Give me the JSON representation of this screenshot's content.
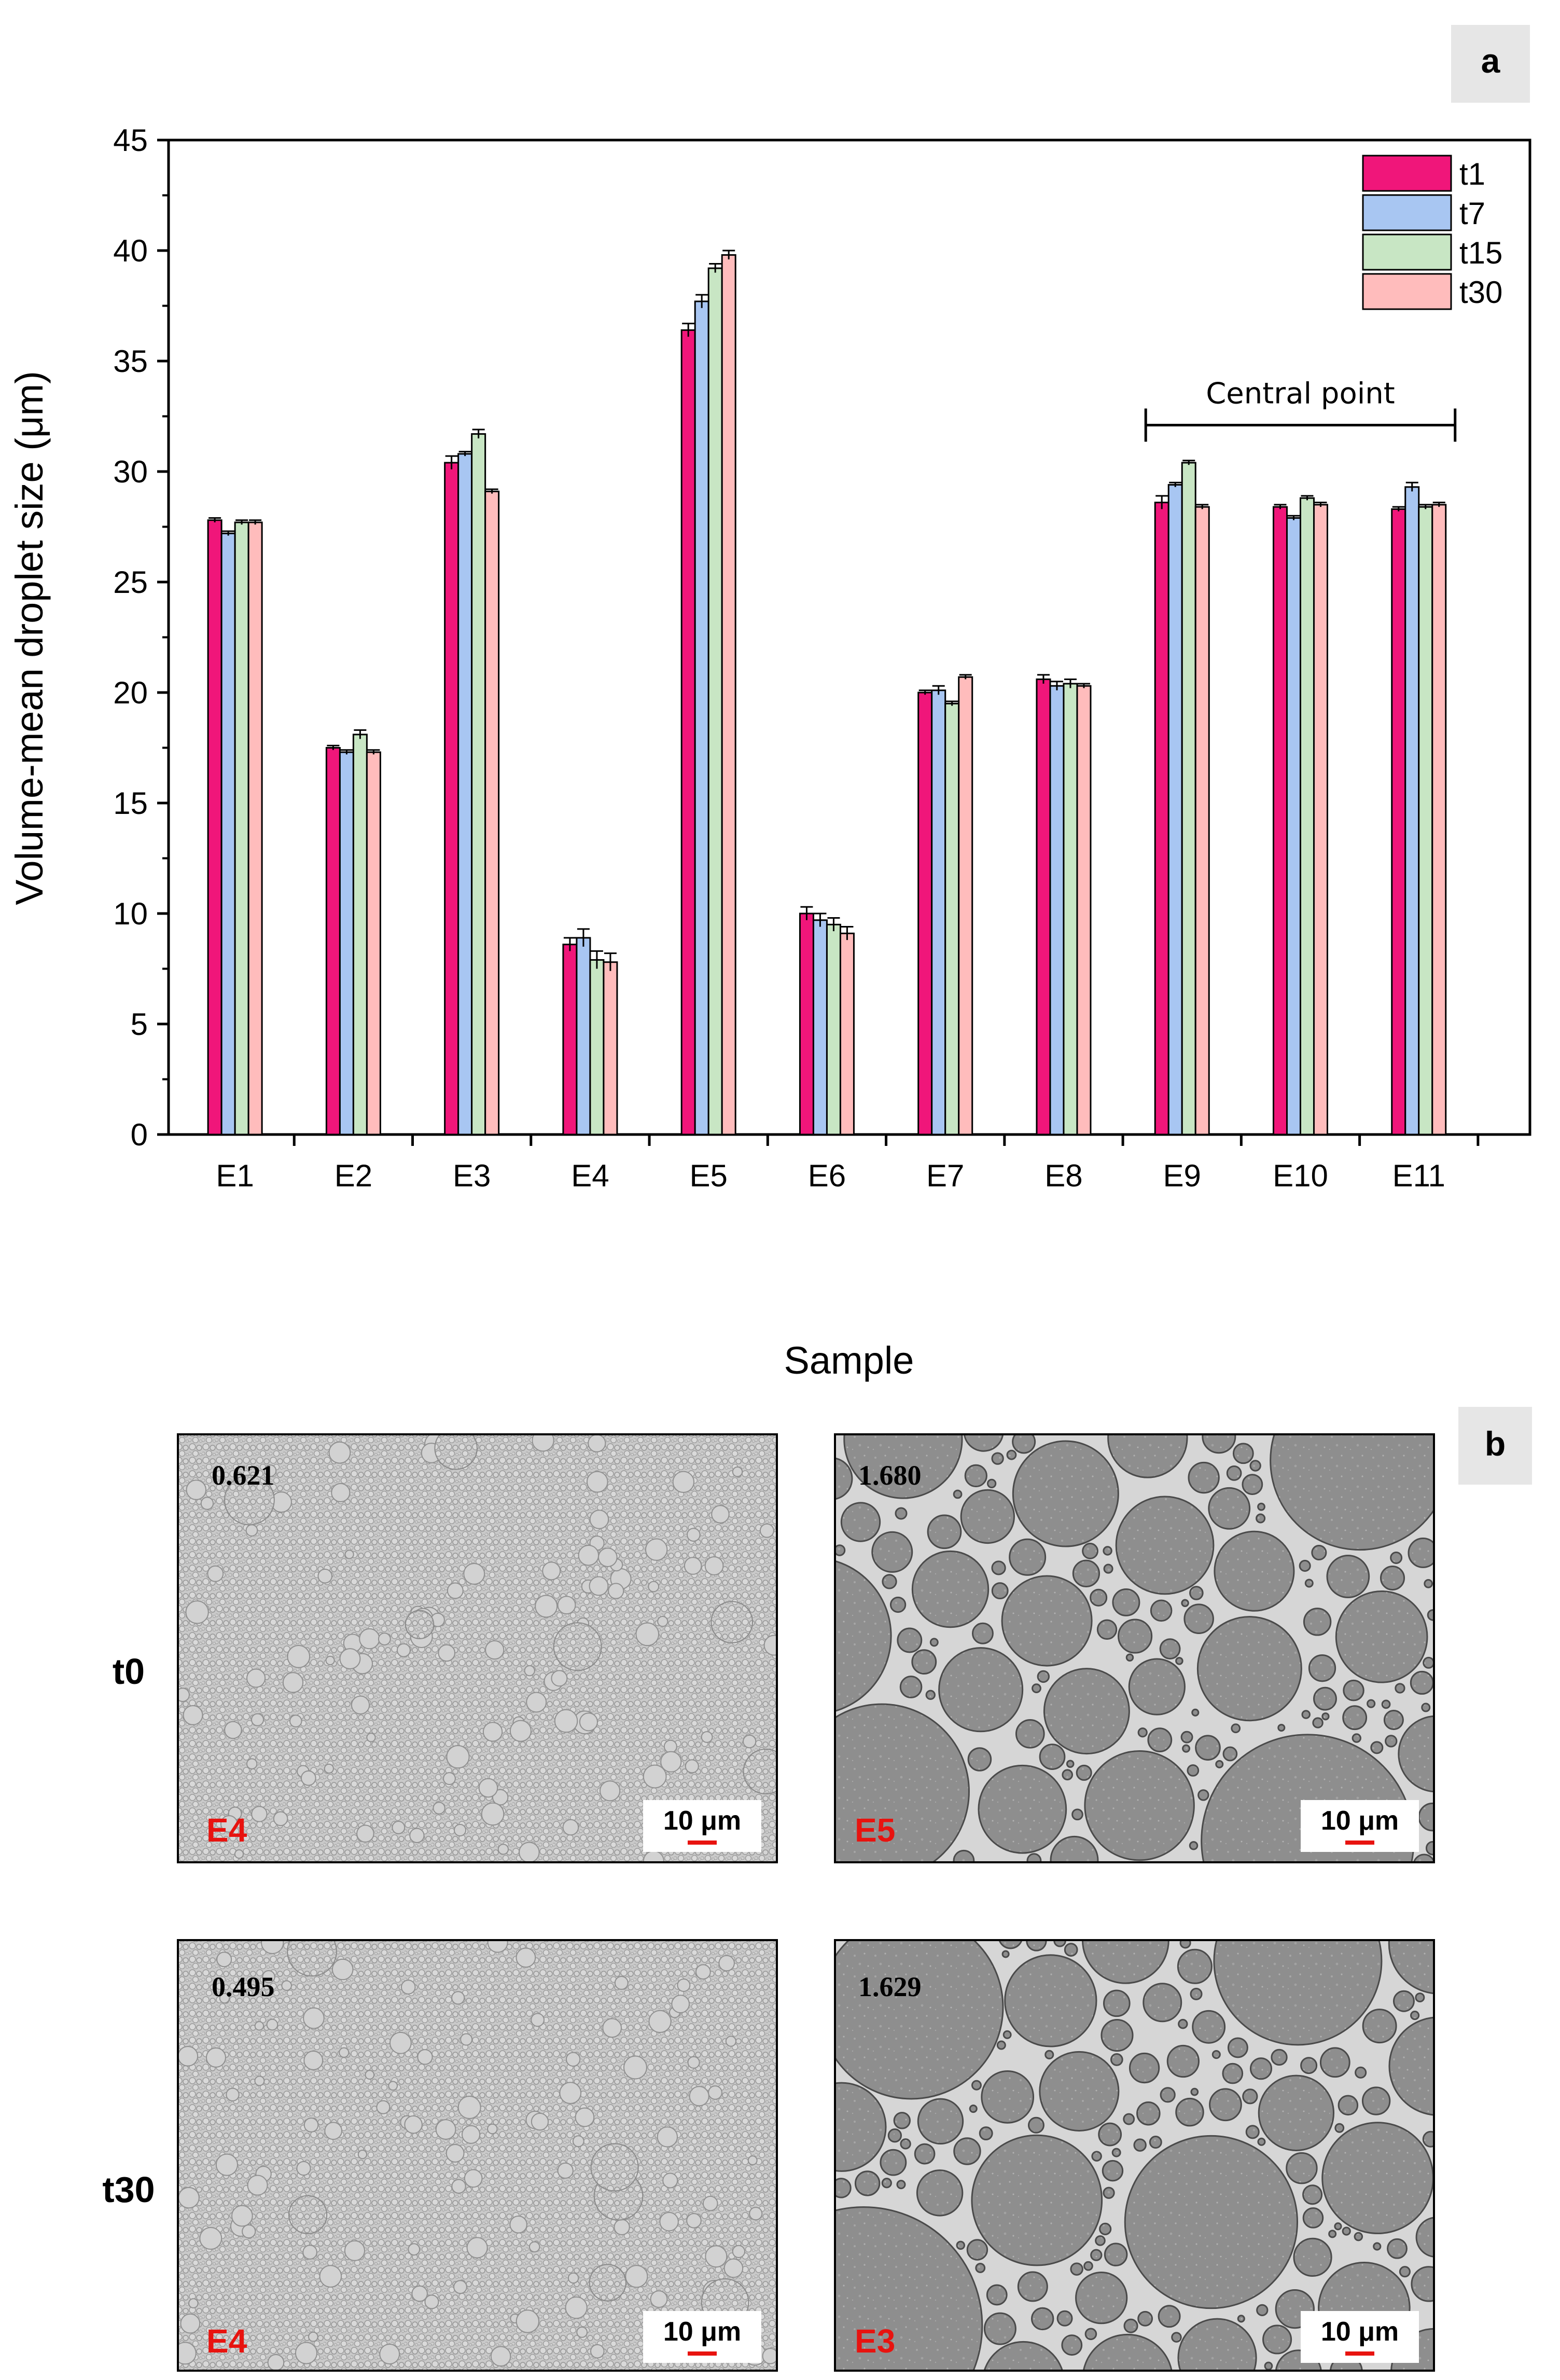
{
  "panel_a_label": "a",
  "panel_b_label": "b",
  "chart_data": {
    "type": "bar",
    "title": "",
    "xlabel": "Sample",
    "ylabel": "Volume-mean droplet size (μm)",
    "ylim": [
      0,
      45
    ],
    "yticks": [
      0,
      5,
      10,
      15,
      20,
      25,
      30,
      35,
      40,
      45
    ],
    "categories": [
      "E1",
      "E2",
      "E3",
      "E4",
      "E5",
      "E6",
      "E7",
      "E8",
      "E9",
      "E10",
      "E11"
    ],
    "series": [
      {
        "name": "t1",
        "color": "#f0167a",
        "values": [
          27.8,
          17.5,
          30.4,
          8.6,
          36.4,
          10.0,
          20.0,
          20.6,
          28.6,
          28.4,
          28.3
        ],
        "errors": [
          0.1,
          0.1,
          0.3,
          0.3,
          0.3,
          0.3,
          0.1,
          0.2,
          0.3,
          0.1,
          0.1
        ]
      },
      {
        "name": "t7",
        "color": "#a8c6f2",
        "values": [
          27.2,
          17.3,
          30.8,
          8.9,
          37.7,
          9.7,
          20.1,
          20.3,
          29.4,
          27.9,
          29.3
        ],
        "errors": [
          0.1,
          0.1,
          0.1,
          0.4,
          0.3,
          0.3,
          0.2,
          0.2,
          0.1,
          0.1,
          0.2
        ]
      },
      {
        "name": "t15",
        "color": "#c8e6c4",
        "values": [
          27.7,
          18.1,
          31.7,
          7.9,
          39.2,
          9.5,
          19.5,
          20.4,
          30.4,
          28.8,
          28.4
        ],
        "errors": [
          0.1,
          0.2,
          0.2,
          0.4,
          0.2,
          0.3,
          0.1,
          0.2,
          0.1,
          0.1,
          0.1
        ]
      },
      {
        "name": "t30",
        "color": "#ffbcbc",
        "values": [
          27.7,
          17.3,
          29.1,
          7.8,
          39.8,
          9.1,
          20.7,
          20.3,
          28.4,
          28.5,
          28.5
        ],
        "errors": [
          0.1,
          0.1,
          0.1,
          0.4,
          0.2,
          0.3,
          0.1,
          0.1,
          0.1,
          0.1,
          0.1
        ]
      }
    ],
    "legend": [
      "t1",
      "t7",
      "t15",
      "t30"
    ],
    "legend_position": "top-right",
    "annotation": {
      "text": "Central point",
      "spans": [
        "E9",
        "E11"
      ]
    }
  },
  "micrographs": {
    "rows": [
      "t0",
      "t30"
    ],
    "scale_bar": "10 μm",
    "panels": [
      {
        "row": "t0",
        "ratio": "0.621",
        "sample": "E4",
        "kind": "fine"
      },
      {
        "row": "t0",
        "ratio": "1.680",
        "sample": "E5",
        "kind": "coarse"
      },
      {
        "row": "t30",
        "ratio": "0.495",
        "sample": "E4",
        "kind": "fine"
      },
      {
        "row": "t30",
        "ratio": "1.629",
        "sample": "E3",
        "kind": "coarse"
      }
    ]
  }
}
